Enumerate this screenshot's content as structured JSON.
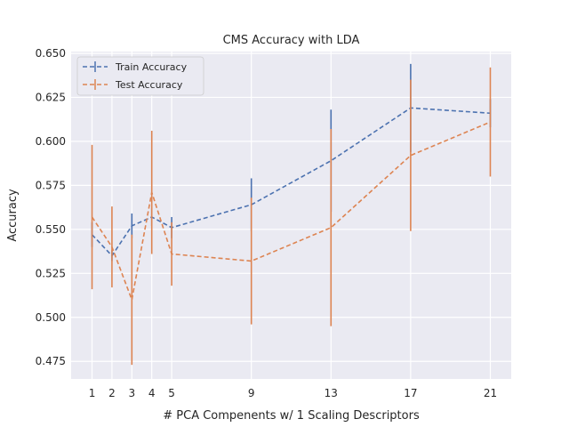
{
  "chart_data": {
    "type": "line",
    "title": "CMS Accuracy with LDA",
    "xlabel": "# PCA Compenents w/ 1 Scaling Descriptors",
    "ylabel": "Accuracy",
    "x": [
      1,
      2,
      3,
      4,
      5,
      9,
      13,
      17,
      21
    ],
    "xlim": [
      -0.05,
      22.05
    ],
    "ylim": [
      0.465,
      0.651
    ],
    "yticks": [
      0.475,
      0.5,
      0.525,
      0.55,
      0.575,
      0.6,
      0.625,
      0.65
    ],
    "ytick_labels": [
      "0.475",
      "0.500",
      "0.525",
      "0.550",
      "0.575",
      "0.600",
      "0.625",
      "0.650"
    ],
    "xtick_labels": [
      "1",
      "2",
      "3",
      "4",
      "5",
      "9",
      "13",
      "17",
      "21"
    ],
    "grid": true,
    "legend_position": "top-left",
    "series": [
      {
        "name": "Train Accuracy",
        "color": "#4c72b0",
        "style": "dashed",
        "values": [
          0.547,
          0.535,
          0.552,
          0.557,
          0.551,
          0.564,
          0.589,
          0.619,
          0.616
        ],
        "errors": [
          0.007,
          0.003,
          0.007,
          0.005,
          0.006,
          0.015,
          0.029,
          0.025,
          0.008
        ]
      },
      {
        "name": "Test Accuracy",
        "color": "#dd8452",
        "style": "dashed",
        "values": [
          0.557,
          0.54,
          0.51,
          0.571,
          0.536,
          0.532,
          0.551,
          0.592,
          0.611
        ],
        "errors": [
          0.041,
          0.023,
          0.037,
          0.035,
          0.018,
          0.036,
          0.056,
          0.043,
          0.031
        ]
      }
    ]
  }
}
